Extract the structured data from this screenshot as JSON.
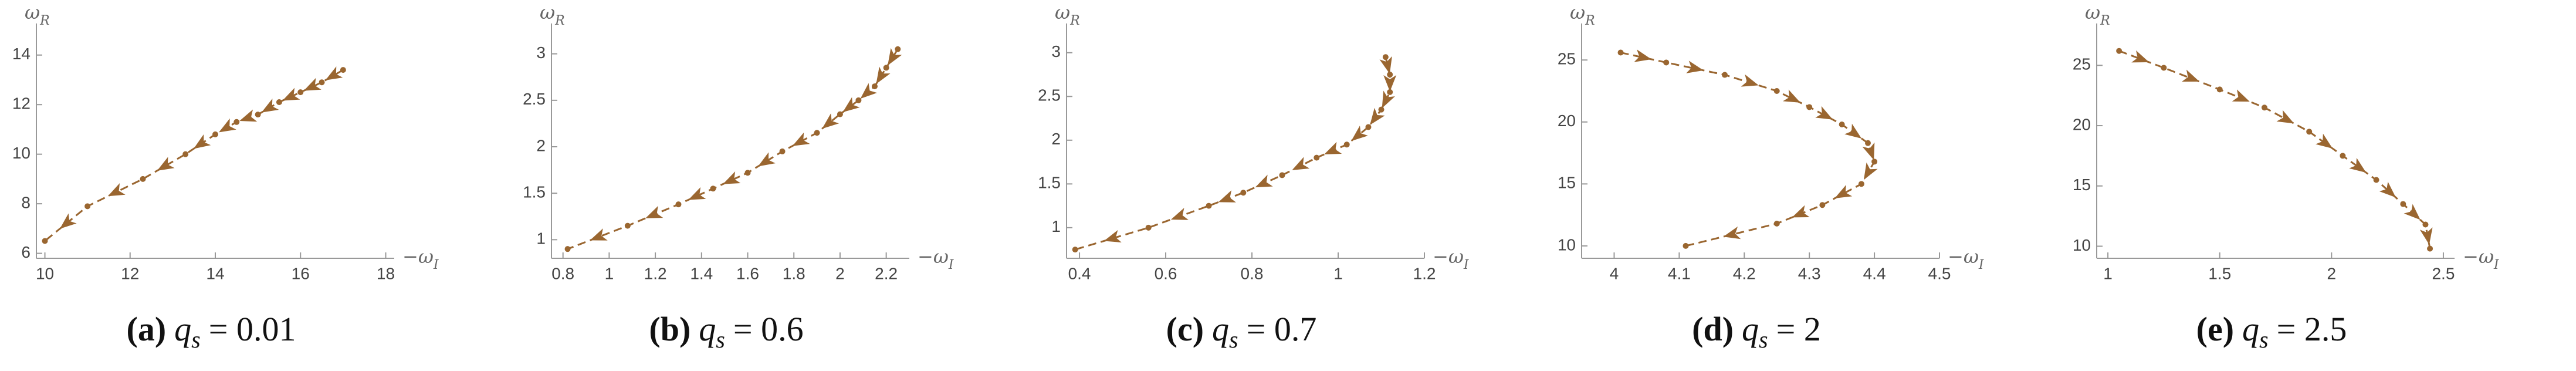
{
  "chart_data": [
    {
      "type": "line",
      "x_label": {
        "sign": "−ω",
        "sub": "I"
      },
      "y_label": {
        "base": "ω",
        "sub": "R"
      },
      "caption": {
        "tag": "(a)",
        "var": "q",
        "sub": "s",
        "rel": "= 0.01"
      },
      "xlim": [
        9.8,
        18.2
      ],
      "xticks": [
        10,
        12,
        14,
        16,
        18
      ],
      "ylim": [
        5.8,
        14.8
      ],
      "yticks": [
        6,
        8,
        10,
        12,
        14
      ],
      "series": [
        {
          "color": "#9a6630",
          "x": [
            17,
            16.5,
            16,
            15.5,
            15,
            14.5,
            14,
            13.3,
            12.3,
            11,
            10
          ],
          "values": [
            13.4,
            12.9,
            12.5,
            12.1,
            11.6,
            11.3,
            10.8,
            10,
            9,
            7.9,
            6.5
          ]
        }
      ]
    },
    {
      "type": "line",
      "x_label": {
        "sign": "−ω",
        "sub": "I"
      },
      "y_label": {
        "base": "ω",
        "sub": "R"
      },
      "caption": {
        "tag": "(b)",
        "var": "q",
        "sub": "s",
        "rel": "= 0.6"
      },
      "xlim": [
        0.75,
        2.3
      ],
      "xticks": [
        0.8,
        1.0,
        1.2,
        1.4,
        1.6,
        1.8,
        2.0,
        2.2
      ],
      "ylim": [
        0.8,
        3.2
      ],
      "yticks": [
        1.0,
        1.5,
        2.0,
        2.5,
        3.0
      ],
      "series": [
        {
          "color": "#9a6630",
          "x": [
            2.25,
            2.2,
            2.15,
            2.08,
            2.0,
            1.9,
            1.75,
            1.6,
            1.45,
            1.3,
            1.08,
            0.82
          ],
          "values": [
            3.05,
            2.85,
            2.65,
            2.5,
            2.35,
            2.15,
            1.95,
            1.72,
            1.55,
            1.38,
            1.15,
            0.9
          ]
        }
      ]
    },
    {
      "type": "line",
      "x_label": {
        "sign": "−ω",
        "sub": "I"
      },
      "y_label": {
        "base": "ω",
        "sub": "R"
      },
      "caption": {
        "tag": "(c)",
        "var": "q",
        "sub": "s",
        "rel": "= 0.7"
      },
      "xlim": [
        0.37,
        1.2
      ],
      "xticks": [
        0.4,
        0.6,
        0.8,
        1.0,
        1.2
      ],
      "ylim": [
        0.65,
        3.2
      ],
      "yticks": [
        1.0,
        1.5,
        2.0,
        2.5,
        3.0
      ],
      "series": [
        {
          "color": "#9a6630",
          "x": [
            1.11,
            1.12,
            1.12,
            1.1,
            1.07,
            1.02,
            0.95,
            0.87,
            0.78,
            0.7,
            0.56,
            0.39
          ],
          "values": [
            2.95,
            2.75,
            2.55,
            2.35,
            2.15,
            1.95,
            1.8,
            1.6,
            1.4,
            1.25,
            1.0,
            0.75
          ]
        }
      ]
    },
    {
      "type": "line",
      "x_label": {
        "sign": "−ω",
        "sub": "I"
      },
      "y_label": {
        "base": "ω",
        "sub": "R"
      },
      "caption": {
        "tag": "(d)",
        "var": "q",
        "sub": "s",
        "rel": "= 2"
      },
      "xlim": [
        3.95,
        4.5
      ],
      "xticks": [
        4.0,
        4.1,
        4.2,
        4.3,
        4.4,
        4.5
      ],
      "ylim": [
        9,
        27
      ],
      "yticks": [
        10,
        15,
        20,
        25
      ],
      "series": [
        {
          "color": "#9a6630",
          "x": [
            4.01,
            4.08,
            4.17,
            4.25,
            4.3,
            4.35,
            4.39,
            4.4,
            4.38,
            4.32,
            4.25,
            4.11
          ],
          "values": [
            25.6,
            24.8,
            23.8,
            22.5,
            21.2,
            19.8,
            18.3,
            16.8,
            15,
            13.3,
            11.8,
            10
          ]
        }
      ]
    },
    {
      "type": "line",
      "x_label": {
        "sign": "−ω",
        "sub": "I"
      },
      "y_label": {
        "base": "ω",
        "sub": "R"
      },
      "caption": {
        "tag": "(e)",
        "var": "q",
        "sub": "s",
        "rel": "= 2.5"
      },
      "xlim": [
        0.95,
        2.55
      ],
      "xticks": [
        1.0,
        1.5,
        2.0,
        2.5
      ],
      "ylim": [
        9,
        27.5
      ],
      "yticks": [
        10,
        15,
        20,
        25
      ],
      "series": [
        {
          "color": "#9a6630",
          "x": [
            1.05,
            1.25,
            1.5,
            1.7,
            1.9,
            2.05,
            2.2,
            2.32,
            2.42,
            2.44
          ],
          "values": [
            26.2,
            24.8,
            23,
            21.5,
            19.5,
            17.5,
            15.5,
            13.5,
            11.8,
            9.8
          ]
        }
      ]
    }
  ]
}
